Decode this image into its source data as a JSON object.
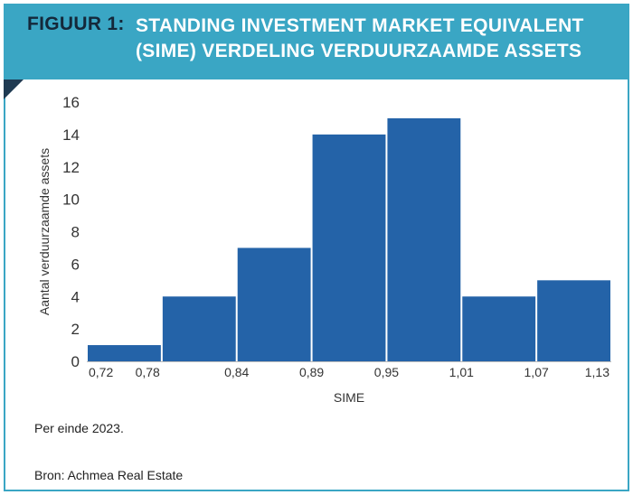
{
  "header": {
    "figure_label": "FIGUUR 1:",
    "title_line1": "STANDING INVESTMENT MARKET EQUIVALENT",
    "title_line2": "(SIME) VERDELING VERDUURZAAMDE ASSETS",
    "background_color": "#3aa6c4"
  },
  "chart_data": {
    "type": "bar",
    "categories": [
      "0,72-0,78",
      "0,78-0,84",
      "0,84-0,89",
      "0,89-0,95",
      "0,95-1,01",
      "1,01-1,07",
      "1,07-1,13"
    ],
    "values": [
      1,
      4,
      7,
      14,
      15,
      4,
      5
    ],
    "xtick_labels": [
      "0,72",
      "0,78",
      "0,84",
      "0,89",
      "0,95",
      "1,01",
      "1,07",
      "1,13"
    ],
    "yticks": [
      0,
      2,
      4,
      6,
      8,
      10,
      12,
      14,
      16
    ],
    "ylim": [
      0,
      16
    ],
    "xlabel": "SIME",
    "ylabel": "Aantal verduurzaamde assets",
    "bar_color": "#2463a8",
    "grid": false
  },
  "notes": {
    "period": "Per einde 2023.",
    "source": "Bron: Achmea Real Estate"
  }
}
